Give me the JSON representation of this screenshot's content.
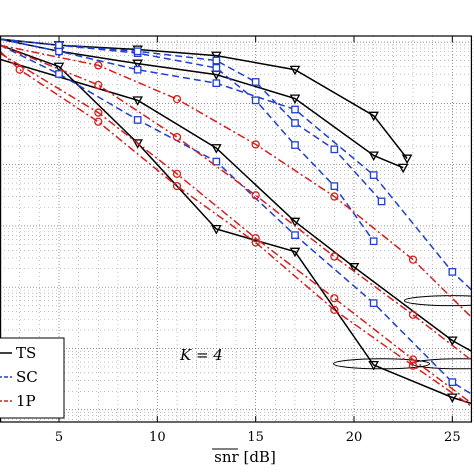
{
  "chart_data": {
    "type": "line",
    "xlabel": "snr [dB]",
    "ylabel": "",
    "xlim": [
      2,
      26
    ],
    "ylim_log": [
      -6.2,
      0.1
    ],
    "x_ticks": [
      5,
      10,
      15,
      20,
      25
    ],
    "grid": true,
    "grid_style": "dotted",
    "legend_position": "bottom-left",
    "annotation": "K = 4",
    "series": [
      {
        "name": "TS",
        "color": "#000000",
        "dash": "solid",
        "marker": "triangle-down",
        "group": "K=2",
        "x": [
          2,
          9,
          13,
          17,
          20,
          25,
          26
        ],
        "y": [
          -0.28,
          -0.95,
          -1.73,
          -2.93,
          -3.67,
          -4.87,
          -5.05
        ]
      },
      {
        "name": "TS",
        "color": "#000000",
        "dash": "solid",
        "marker": "triangle-down",
        "group": "K=3",
        "x": [
          2,
          5,
          9,
          13,
          17,
          21,
          25,
          26
        ],
        "y": [
          -0.05,
          -0.4,
          -1.65,
          -3.05,
          -3.42,
          -5.27,
          -5.8,
          -5.9
        ]
      },
      {
        "name": "TS",
        "color": "#000000",
        "dash": "solid",
        "marker": "triangle-down",
        "group": "K=4",
        "x": [
          2,
          5,
          9,
          13,
          17,
          21,
          22.5
        ],
        "y": [
          0.05,
          -0.15,
          -0.35,
          -0.53,
          -0.92,
          -1.85,
          -2.05
        ]
      },
      {
        "name": "TS",
        "color": "#000000",
        "dash": "solid",
        "marker": "triangle-down",
        "group": "K=5",
        "x": [
          2,
          5,
          9,
          13,
          17,
          21,
          22.7
        ],
        "y": [
          0.05,
          -0.05,
          -0.12,
          -0.22,
          -0.45,
          -1.2,
          -1.9
        ]
      },
      {
        "name": "SC",
        "color": "#1f3fcf",
        "dash": "dashed",
        "marker": "square",
        "group": "K=2",
        "x": [
          2,
          5,
          9,
          13,
          17,
          21,
          25,
          26
        ],
        "y": [
          -0.05,
          -0.52,
          -1.27,
          -1.95,
          -3.15,
          -4.26,
          -5.55,
          -5.75
        ]
      },
      {
        "name": "SC",
        "color": "#1f3fcf",
        "dash": "dashed",
        "marker": "square",
        "group": "K=3",
        "x": [
          2,
          5,
          9,
          13,
          17,
          21,
          25,
          26
        ],
        "y": [
          0.05,
          -0.15,
          -0.45,
          -0.67,
          -1.1,
          -2.17,
          -3.75,
          -4.05
        ]
      },
      {
        "name": "SC",
        "color": "#1f3fcf",
        "dash": "dashed",
        "marker": "square",
        "group": "K=4",
        "x": [
          2,
          5,
          9,
          13,
          15,
          17,
          19,
          21
        ],
        "y": [
          0.05,
          -0.05,
          -0.18,
          -0.42,
          -0.95,
          -1.68,
          -2.35,
          -3.25
        ]
      },
      {
        "name": "SC",
        "color": "#1f3fcf",
        "dash": "dashed",
        "marker": "square",
        "group": "K=5",
        "x": [
          2,
          5,
          9,
          13,
          15,
          17,
          19,
          21.4
        ],
        "y": [
          0.05,
          -0.05,
          -0.15,
          -0.3,
          -0.65,
          -1.32,
          -1.75,
          -2.6
        ]
      },
      {
        "name": "1P",
        "color": "#d42020",
        "dash": "dashdot",
        "marker": "circle",
        "group": "K=2",
        "x": [
          2,
          7,
          11,
          15,
          19,
          23,
          26
        ],
        "y": [
          -0.18,
          -1.15,
          -2.15,
          -3.2,
          -4.18,
          -5.18,
          -5.9
        ]
      },
      {
        "name": "1P",
        "color": "#d42020",
        "dash": "dashdot",
        "marker": "circle",
        "group": "K=3",
        "x": [
          2,
          3,
          7,
          11,
          15,
          19,
          23,
          26
        ],
        "y": [
          -0.15,
          -0.45,
          -1.3,
          -2.35,
          -3.27,
          -4.37,
          -5.28,
          -5.95
        ]
      },
      {
        "name": "1P",
        "color": "#d42020",
        "dash": "dashdot",
        "marker": "circle",
        "group": "K=4",
        "x": [
          2,
          7,
          11,
          15,
          19,
          23,
          26
        ],
        "y": [
          -0.05,
          -0.7,
          -1.55,
          -2.5,
          -3.5,
          -4.45,
          -5.2
        ]
      },
      {
        "name": "1P",
        "color": "#d42020",
        "dash": "dashdot",
        "marker": "circle",
        "group": "K=5",
        "x": [
          2,
          7,
          11,
          15,
          19,
          23,
          26
        ],
        "y": [
          -0.05,
          -0.38,
          -0.93,
          -1.67,
          -2.52,
          -3.55,
          -4.5
        ]
      }
    ],
    "ellipses": [
      {
        "cx": 25.0,
        "cy": -4.22
      },
      {
        "cx": 21.4,
        "cy": -5.25
      },
      {
        "cx": 25.4,
        "cy": -5.25
      }
    ]
  },
  "legend": {
    "items": [
      {
        "label": "TS",
        "color": "#000000",
        "dash": "solid",
        "marker": "triangle-down"
      },
      {
        "label": "SC",
        "color": "#1f3fcf",
        "dash": "dashed",
        "marker": "square"
      },
      {
        "label": "1P",
        "color": "#d42020",
        "dash": "dashdot",
        "marker": "circle"
      }
    ]
  },
  "annotation": {
    "k_label": "K = 4"
  }
}
